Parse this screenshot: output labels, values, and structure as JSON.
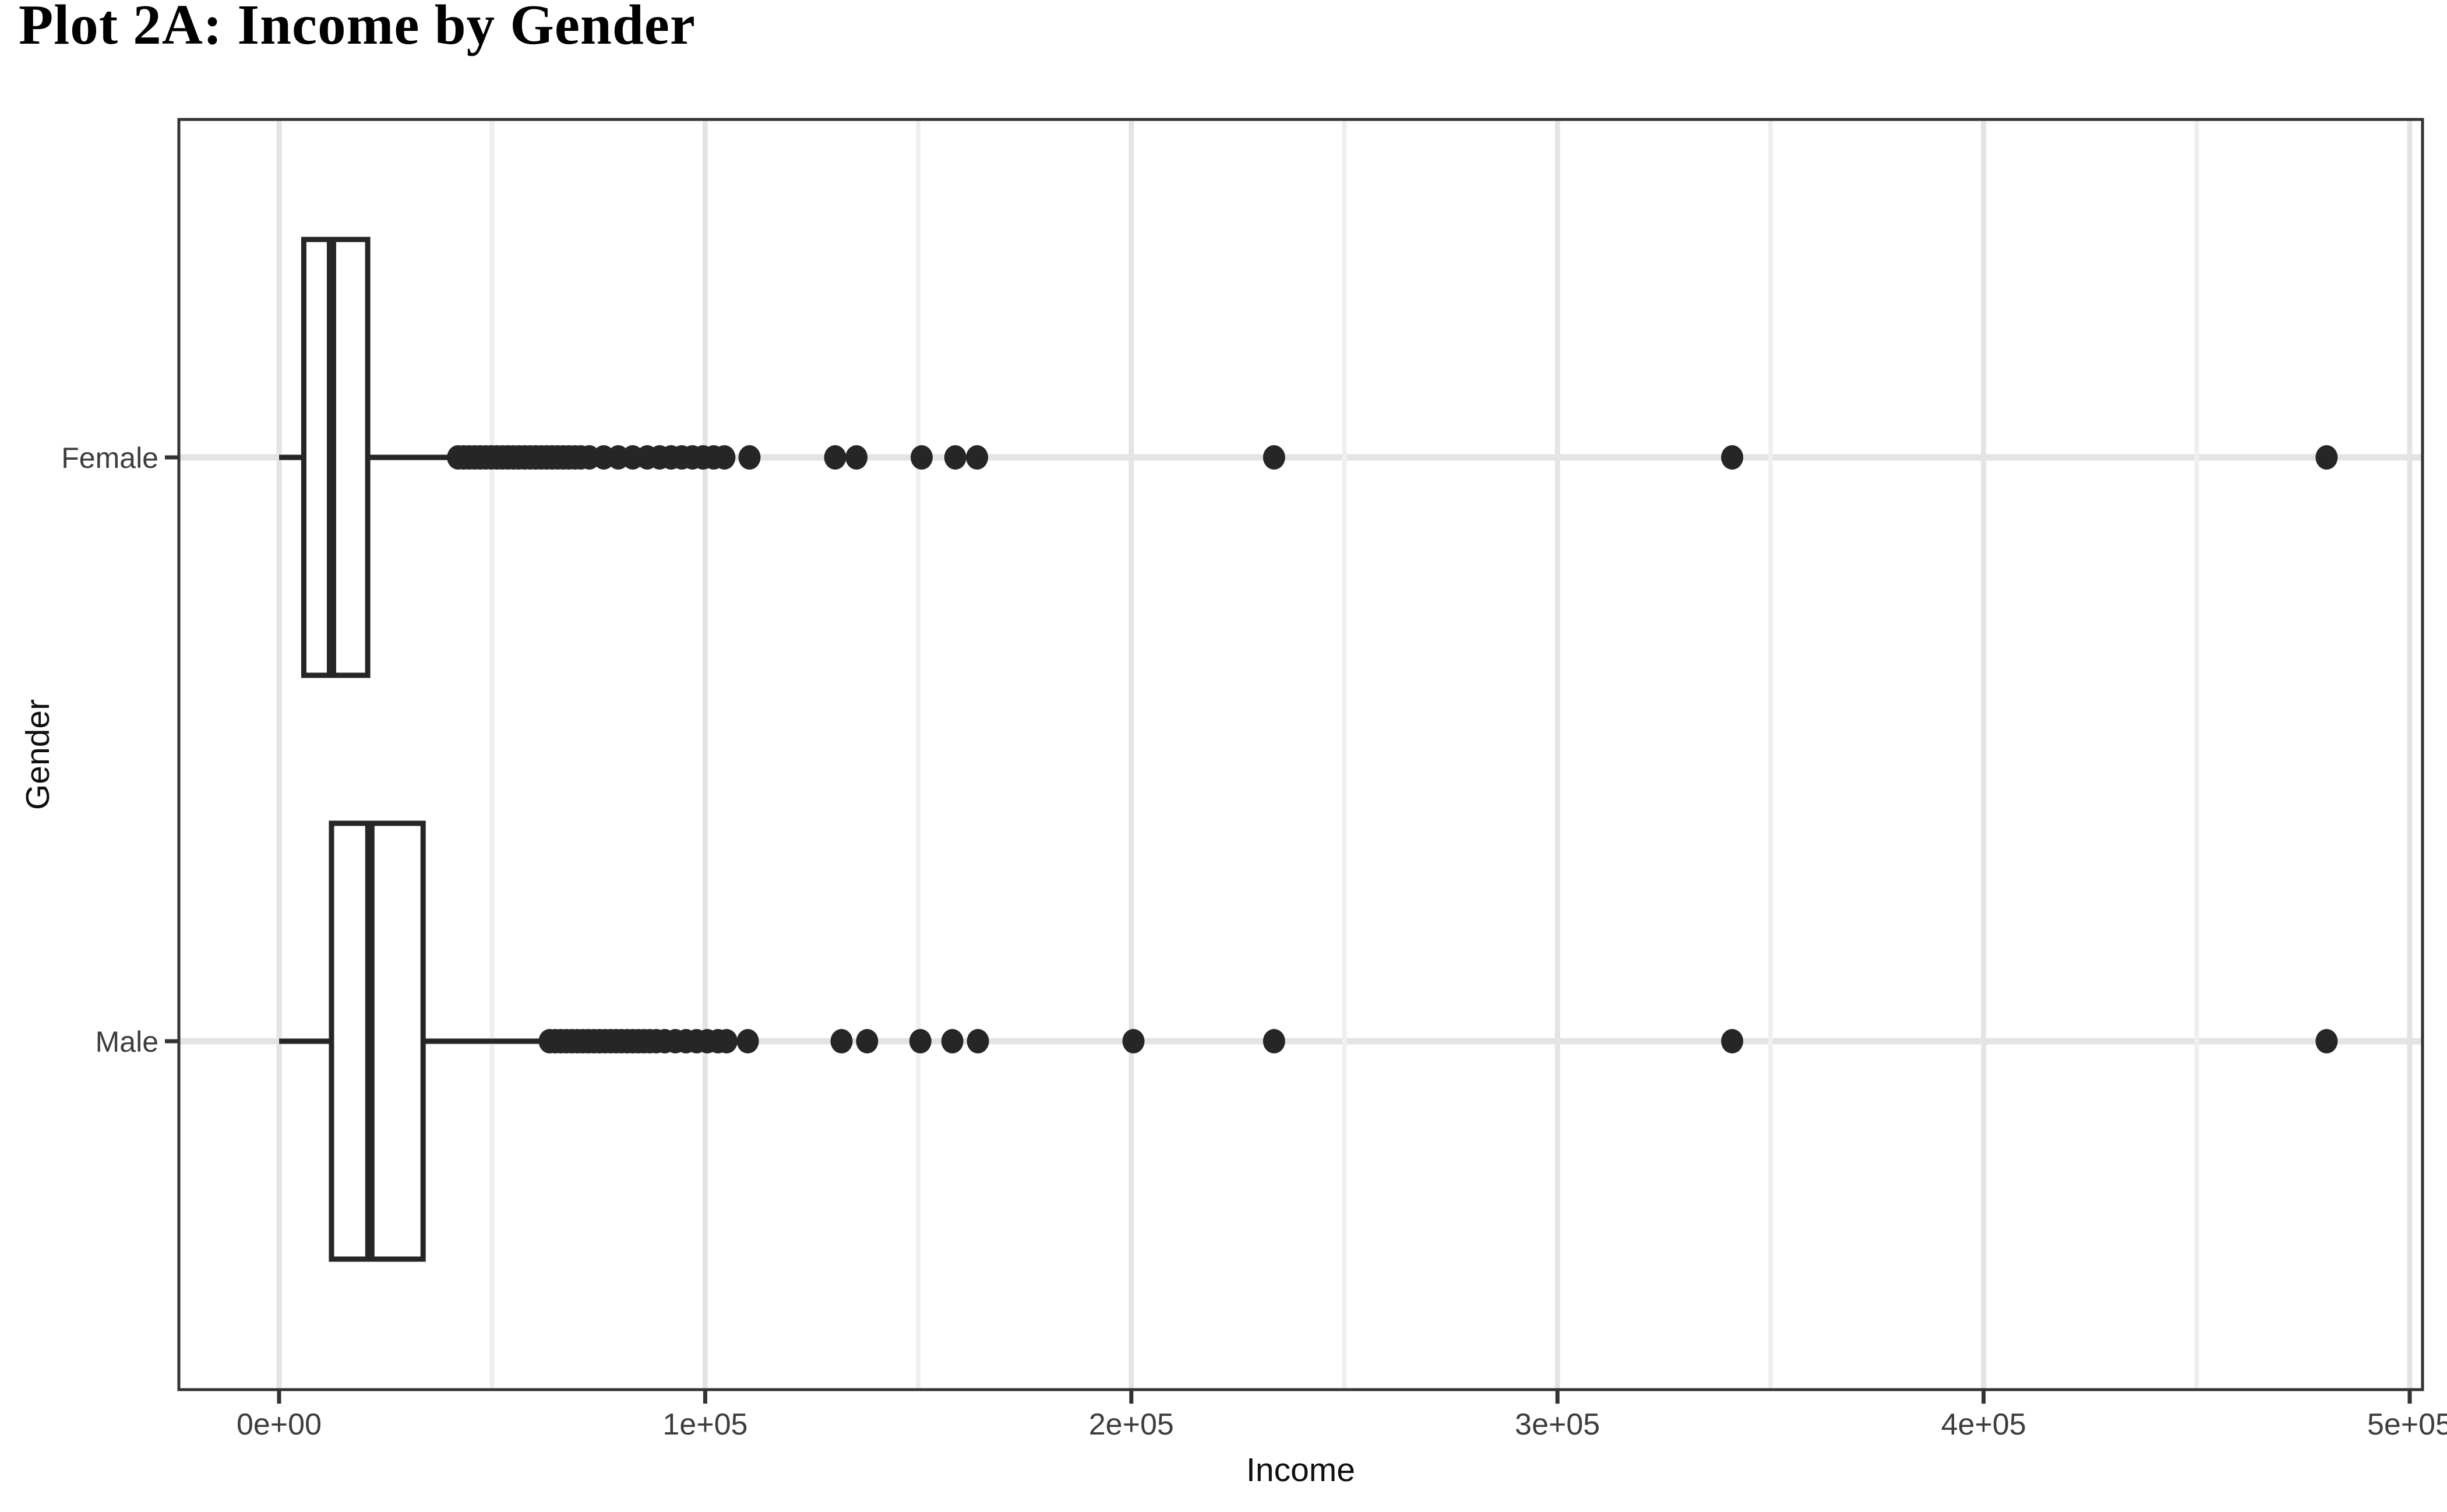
{
  "chart_data": {
    "type": "boxplot",
    "orientation": "horizontal",
    "title": "Plot 2A: Income by Gender",
    "xlabel": "Income",
    "ylabel": "Gender",
    "x_ticks": [
      {
        "label": "0e+00",
        "value": 0
      },
      {
        "label": "1e+05",
        "value": 100000
      },
      {
        "label": "2e+05",
        "value": 200000
      },
      {
        "label": "3e+05",
        "value": 300000
      },
      {
        "label": "4e+05",
        "value": 400000
      },
      {
        "label": "5e+05",
        "value": 500000
      }
    ],
    "x_minor_ticks": [
      50000,
      150000,
      250000,
      350000,
      450000
    ],
    "xlim": [
      -24000,
      503000
    ],
    "grid": true,
    "legend": false,
    "categories": [
      {
        "label": "Female",
        "row": "top",
        "stats": {
          "whisker_min": 0,
          "q1": 5800,
          "median": 12300,
          "q3": 20800,
          "whisker_max": 41500
        },
        "outliers": [
          42000,
          43300,
          44600,
          45900,
          47200,
          48500,
          49800,
          51100,
          52400,
          53700,
          55000,
          56300,
          57600,
          58900,
          60200,
          61500,
          62800,
          64100,
          65400,
          66700,
          68000,
          69400,
          70800,
          72800,
          76200,
          79600,
          83000,
          86400,
          89300,
          92000,
          94500,
          97000,
          99500,
          102000,
          104500,
          110400,
          130500,
          135500,
          150800,
          158700,
          163800,
          233500,
          341000,
          480500
        ]
      },
      {
        "label": "Male",
        "row": "bottom",
        "stats": {
          "whisker_min": 0,
          "q1": 12300,
          "median": 21300,
          "q3": 33800,
          "whisker_max": 63400
        },
        "outliers": [
          63500,
          64800,
          66100,
          67400,
          68700,
          70000,
          71300,
          72600,
          73900,
          75200,
          76500,
          77800,
          79100,
          80400,
          81700,
          83000,
          84300,
          85600,
          87000,
          88500,
          90500,
          93000,
          95500,
          98000,
          100500,
          103000,
          105000,
          110000,
          132000,
          138000,
          150500,
          158000,
          164000,
          200500,
          233500,
          341000,
          480500
        ]
      }
    ],
    "style": {
      "box_color": "#262626",
      "box_fill": "#ffffff",
      "point_color": "#262626",
      "grid_major": "#e4e4e4",
      "grid_minor": "#efefef",
      "panel_border": "#333333",
      "panel_fill": "#ffffff",
      "tick_color": "#333333",
      "tick_label_color": "#3d3d3d",
      "axis_title_color": "#0f0f0f",
      "title_color": "#000000"
    }
  }
}
